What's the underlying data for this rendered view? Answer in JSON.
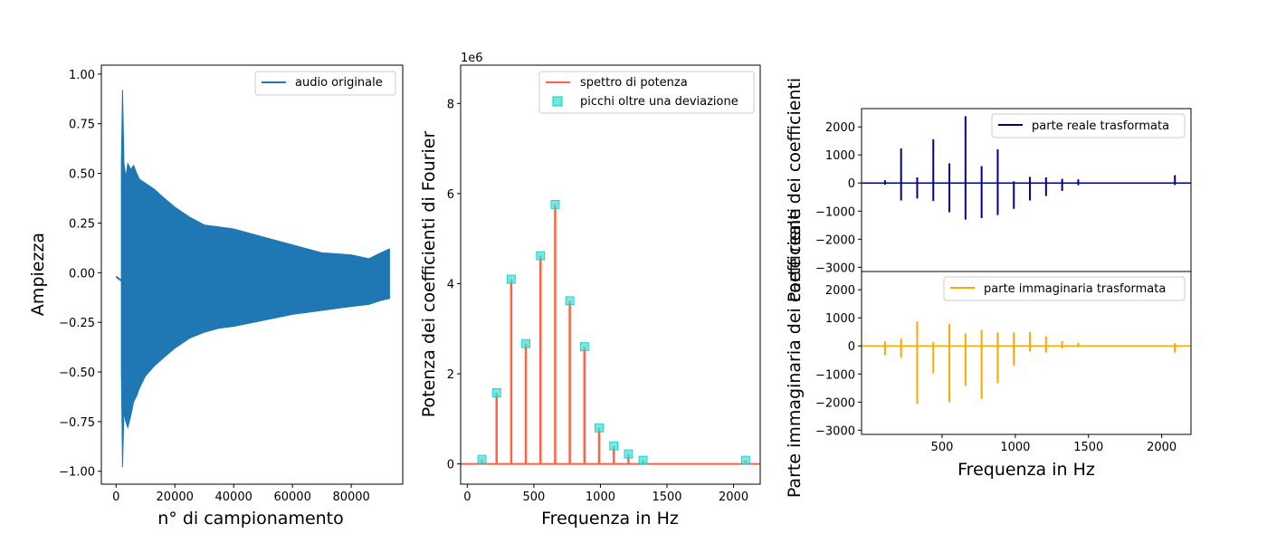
{
  "chart_data": [
    {
      "type": "line",
      "id": "audio",
      "xlabel": "n° di campionamento",
      "ylabel": "Ampiezza",
      "xlim": [
        -5000,
        97500
      ],
      "ylim": [
        -1.065,
        1.045
      ],
      "xticks": [
        0,
        20000,
        40000,
        60000,
        80000
      ],
      "yticks": [
        1.0,
        0.75,
        0.5,
        0.25,
        0.0,
        -0.25,
        -0.5,
        -0.75,
        -1.0
      ],
      "ytick_labels": [
        "1.00",
        "0.75",
        "0.50",
        "0.25",
        "0.00",
        "−0.25",
        "−0.50",
        "−0.75",
        "−1.00"
      ],
      "legend": "top-right",
      "series": [
        {
          "name": "audio originale",
          "color": "#1f77b4",
          "pre": {
            "x": [
              0,
              1800
            ],
            "y": [
              -0.02,
              -0.04
            ]
          },
          "envelope_x": [
            1800,
            2200,
            2700,
            3300,
            4000,
            5000,
            6000,
            7000,
            8000,
            10000,
            13000,
            16000,
            20000,
            25000,
            30000,
            35000,
            40000,
            50000,
            60000,
            70000,
            80000,
            86000,
            90000,
            93000
          ],
          "envelope_upper": [
            0.55,
            0.92,
            0.55,
            0.48,
            0.55,
            0.52,
            0.54,
            0.5,
            0.47,
            0.45,
            0.42,
            0.38,
            0.33,
            0.28,
            0.24,
            0.23,
            0.22,
            0.18,
            0.14,
            0.1,
            0.09,
            0.07,
            0.1,
            0.12
          ],
          "envelope_lower": [
            -0.5,
            -0.98,
            -0.7,
            -0.75,
            -0.78,
            -0.72,
            -0.65,
            -0.62,
            -0.58,
            -0.52,
            -0.47,
            -0.43,
            -0.38,
            -0.33,
            -0.3,
            -0.28,
            -0.27,
            -0.24,
            -0.21,
            -0.19,
            -0.17,
            -0.16,
            -0.14,
            -0.13
          ]
        }
      ]
    },
    {
      "type": "line",
      "id": "power",
      "xlabel": "Frequenza in Hz",
      "ylabel": "Potenza dei coefficienti di Fourier",
      "offset_label": "1e6",
      "xlim": [
        -50,
        2200
      ],
      "ylim": [
        -0.45,
        8.85
      ],
      "xticks": [
        0,
        500,
        1000,
        1500,
        2000
      ],
      "yticks": [
        0,
        2,
        4,
        6,
        8
      ],
      "legend": "top-right",
      "series": [
        {
          "name": "spettro di potenza",
          "color": "#ff6347",
          "peaks_x": [
            110,
            220,
            330,
            440,
            550,
            660,
            770,
            880,
            990,
            1100,
            1210,
            1320,
            2090
          ],
          "peaks_y": [
            0.1,
            1.58,
            4.1,
            2.67,
            4.62,
            5.76,
            3.62,
            2.6,
            0.8,
            0.4,
            0.22,
            0.08,
            0.08
          ]
        },
        {
          "name": "picchi oltre una deviazione",
          "color": "#00ced1",
          "marker": "square",
          "x": [
            110,
            220,
            330,
            440,
            550,
            660,
            770,
            880,
            990,
            1100,
            1210,
            1320,
            2090
          ],
          "y": [
            0.1,
            1.58,
            4.1,
            2.67,
            4.62,
            5.76,
            3.62,
            2.6,
            0.8,
            0.4,
            0.22,
            0.08,
            0.08
          ]
        }
      ]
    },
    {
      "type": "line",
      "id": "real",
      "xlabel": "",
      "ylabel": "Parte reale dei coefficienti",
      "xlim": [
        -50,
        2200
      ],
      "ylim": [
        -3150,
        2650
      ],
      "xticks": [
        500,
        1000,
        1500,
        2000
      ],
      "yticks": [
        2000,
        1000,
        0,
        -1000,
        -2000,
        -3000
      ],
      "legend": "top-right",
      "series": [
        {
          "name": "parte reale trasformata",
          "color": "#00008b",
          "spikes_x": [
            110,
            220,
            330,
            440,
            550,
            660,
            770,
            880,
            990,
            1100,
            1210,
            1320,
            1430,
            2090
          ],
          "spikes_pos": [
            100,
            1230,
            200,
            1560,
            700,
            2380,
            600,
            1200,
            60,
            220,
            200,
            150,
            130,
            280
          ],
          "spikes_neg": [
            -60,
            -620,
            -550,
            -640,
            -1040,
            -1300,
            -1250,
            -1140,
            -920,
            -620,
            -460,
            -280,
            -80,
            -70
          ]
        }
      ]
    },
    {
      "type": "line",
      "id": "imag",
      "xlabel": "Frequenza in Hz",
      "ylabel": "Parte immaginaria dei coefficienti",
      "xlim": [
        -50,
        2200
      ],
      "ylim": [
        -3150,
        2650
      ],
      "xticks": [
        500,
        1000,
        1500,
        2000
      ],
      "yticks": [
        2000,
        1000,
        0,
        -1000,
        -2000,
        -3000
      ],
      "legend": "top-right",
      "series": [
        {
          "name": "parte immaginaria trasformata",
          "color": "#ffa500",
          "spikes_x": [
            110,
            220,
            330,
            440,
            550,
            660,
            770,
            880,
            990,
            1100,
            1210,
            1320,
            1430,
            2090
          ],
          "spikes_pos": [
            160,
            260,
            870,
            140,
            790,
            440,
            560,
            480,
            480,
            490,
            340,
            170,
            110,
            100
          ],
          "spikes_neg": [
            -330,
            -420,
            -2060,
            -980,
            -2000,
            -1420,
            -1890,
            -1330,
            -700,
            -200,
            -240,
            -90,
            -40,
            -240
          ]
        }
      ]
    }
  ]
}
